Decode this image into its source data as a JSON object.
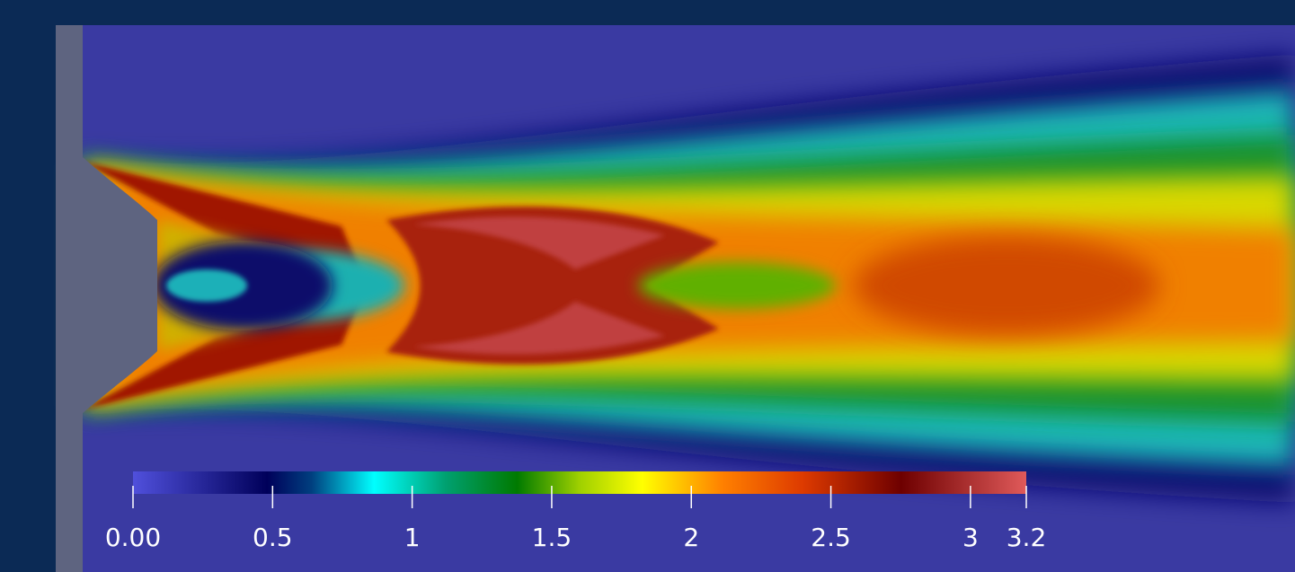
{
  "colorbar": {
    "range": [
      0,
      3.2
    ],
    "ticks": [
      {
        "value": 0,
        "label": "0.00"
      },
      0.5,
      1,
      1.5,
      2,
      2.5,
      3,
      3.2
    ]
  }
}
